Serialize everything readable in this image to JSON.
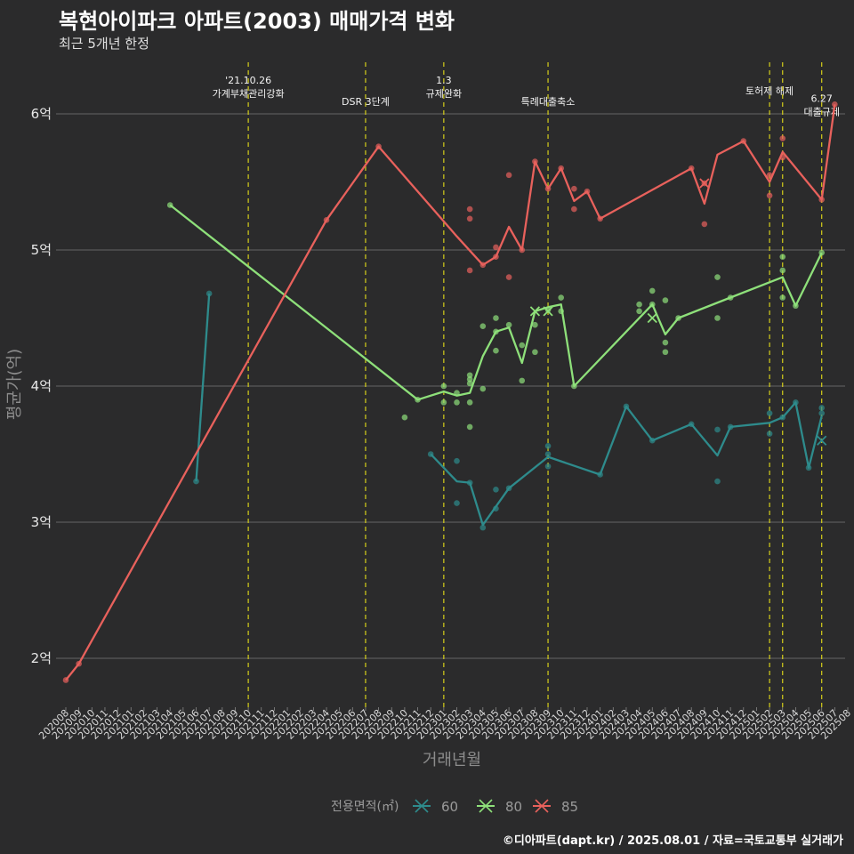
{
  "title": "복현아이파크 아파트(2003) 매매가격 변화",
  "subtitle": "최근 5개년 한정",
  "caption": "©디아파트(dapt.kr) / 2025.08.01 / 자료=국토교통부 실거래가",
  "chart_data": {
    "type": "line",
    "title": "복현아이파크 아파트(2003) 매매가격 변화",
    "subtitle": "최근 5개년 한정",
    "xlabel": "거래년월",
    "ylabel": "평균가(억)",
    "ylim": [
      1.65,
      6.5
    ],
    "yticks": [
      {
        "v": 2,
        "label": "2억"
      },
      {
        "v": 3,
        "label": "3억"
      },
      {
        "v": 4,
        "label": "4억"
      },
      {
        "v": 5,
        "label": "5억"
      },
      {
        "v": 6,
        "label": "6억"
      }
    ],
    "grid": true,
    "legend_position": "bottom",
    "legend_title": "전용면적(㎡)",
    "x_categories": [
      "202008",
      "202009",
      "202010",
      "202011",
      "202012",
      "202101",
      "202102",
      "202103",
      "202104",
      "202105",
      "202106",
      "202107",
      "202108",
      "202109",
      "202110",
      "202111",
      "202112",
      "202201",
      "202202",
      "202203",
      "202204",
      "202205",
      "202206",
      "202207",
      "202208",
      "202209",
      "202210",
      "202211",
      "202212",
      "202301",
      "202302",
      "202303",
      "202304",
      "202305",
      "202306",
      "202307",
      "202308",
      "202309",
      "202310",
      "202311",
      "202312",
      "202401",
      "202402",
      "202403",
      "202404",
      "202405",
      "202406",
      "202407",
      "202408",
      "202409",
      "202410",
      "202411",
      "202412",
      "202501",
      "202502",
      "202503",
      "202504",
      "202505",
      "202506",
      "202507",
      "202508"
    ],
    "series": [
      {
        "name": "60",
        "color": "#2e8b8c",
        "line": [
          [
            "202106",
            3.3
          ],
          [
            "202107",
            4.68
          ]
        ],
        "line2": [
          [
            "202212",
            3.5
          ],
          [
            "202302",
            3.3
          ],
          [
            "202303",
            3.29
          ],
          [
            "202304",
            2.98
          ],
          [
            "202306",
            3.25
          ],
          [
            "202309",
            3.48
          ],
          [
            "202401",
            3.35
          ],
          [
            "202403",
            3.85
          ],
          [
            "202405",
            3.6
          ],
          [
            "202408",
            3.72
          ],
          [
            "202410",
            3.49
          ],
          [
            "202411",
            3.7
          ],
          [
            "202502",
            3.73
          ],
          [
            "202503",
            3.77
          ],
          [
            "202504",
            3.88
          ],
          [
            "202505",
            3.4
          ],
          [
            "202506",
            3.78
          ]
        ],
        "points": [
          [
            "202106",
            3.3
          ],
          [
            "202107",
            4.68
          ],
          [
            "202212",
            3.5
          ],
          [
            "202302",
            3.45
          ],
          [
            "202302",
            3.14
          ],
          [
            "202303",
            3.29
          ],
          [
            "202304",
            2.96
          ],
          [
            "202305",
            3.24
          ],
          [
            "202305",
            3.1
          ],
          [
            "202306",
            3.25
          ],
          [
            "202309",
            3.5
          ],
          [
            "202309",
            3.56
          ],
          [
            "202309",
            3.41
          ],
          [
            "202401",
            3.35
          ],
          [
            "202403",
            3.85
          ],
          [
            "202405",
            3.6
          ],
          [
            "202408",
            3.72
          ],
          [
            "202410",
            3.68
          ],
          [
            "202410",
            3.3
          ],
          [
            "202411",
            3.7
          ],
          [
            "202502",
            3.8
          ],
          [
            "202502",
            3.65
          ],
          [
            "202503",
            3.77
          ],
          [
            "202504",
            3.88
          ],
          [
            "202505",
            3.4
          ],
          [
            "202506",
            3.84
          ],
          [
            "202506",
            3.8
          ]
        ],
        "cross": [
          [
            "202506",
            3.6
          ]
        ]
      },
      {
        "name": "80",
        "color": "#8ee07a",
        "line": [
          [
            "202104",
            5.33
          ],
          [
            "202211",
            3.9
          ],
          [
            "202301",
            3.96
          ],
          [
            "202302",
            3.93
          ],
          [
            "202303",
            3.95
          ],
          [
            "202304",
            4.22
          ],
          [
            "202305",
            4.4
          ],
          [
            "202306",
            4.43
          ],
          [
            "202307",
            4.17
          ],
          [
            "202308",
            4.55
          ],
          [
            "202309",
            4.58
          ],
          [
            "202310",
            4.6
          ],
          [
            "202311",
            4.0
          ],
          [
            "202405",
            4.6
          ],
          [
            "202406",
            4.38
          ],
          [
            "202407",
            4.5
          ],
          [
            "202411",
            4.65
          ],
          [
            "202503",
            4.8
          ],
          [
            "202504",
            4.59
          ],
          [
            "202506",
            4.98
          ]
        ],
        "points": [
          [
            "202104",
            5.33
          ],
          [
            "202210",
            3.77
          ],
          [
            "202211",
            3.9
          ],
          [
            "202301",
            4.0
          ],
          [
            "202301",
            3.88
          ],
          [
            "202302",
            3.95
          ],
          [
            "202302",
            3.88
          ],
          [
            "202303",
            4.05
          ],
          [
            "202303",
            4.08
          ],
          [
            "202303",
            4.02
          ],
          [
            "202303",
            3.88
          ],
          [
            "202303",
            3.7
          ],
          [
            "202304",
            4.44
          ],
          [
            "202304",
            3.98
          ],
          [
            "202305",
            4.5
          ],
          [
            "202305",
            4.4
          ],
          [
            "202305",
            4.26
          ],
          [
            "202306",
            4.45
          ],
          [
            "202307",
            4.3
          ],
          [
            "202307",
            4.04
          ],
          [
            "202308",
            4.45
          ],
          [
            "202308",
            4.25
          ],
          [
            "202309",
            4.56
          ],
          [
            "202310",
            4.65
          ],
          [
            "202310",
            4.55
          ],
          [
            "202311",
            4.0
          ],
          [
            "202404",
            4.6
          ],
          [
            "202404",
            4.55
          ],
          [
            "202405",
            4.7
          ],
          [
            "202405",
            4.6
          ],
          [
            "202406",
            4.63
          ],
          [
            "202406",
            4.32
          ],
          [
            "202406",
            4.25
          ],
          [
            "202407",
            4.5
          ],
          [
            "202410",
            4.8
          ],
          [
            "202410",
            4.5
          ],
          [
            "202411",
            4.65
          ],
          [
            "202503",
            4.95
          ],
          [
            "202503",
            4.85
          ],
          [
            "202503",
            4.65
          ],
          [
            "202504",
            4.59
          ],
          [
            "202506",
            4.98
          ]
        ],
        "cross": [
          [
            "202308",
            4.55
          ],
          [
            "202309",
            4.55
          ],
          [
            "202405",
            4.5
          ]
        ]
      },
      {
        "name": "85",
        "color": "#e8615c",
        "line": [
          [
            "202008",
            1.84
          ],
          [
            "202009",
            1.96
          ],
          [
            "202204",
            5.22
          ],
          [
            "202208",
            5.76
          ],
          [
            "202302",
            5.1
          ],
          [
            "202304",
            4.89
          ],
          [
            "202305",
            4.95
          ],
          [
            "202306",
            5.17
          ],
          [
            "202307",
            5.0
          ],
          [
            "202308",
            5.65
          ],
          [
            "202309",
            5.45
          ],
          [
            "202310",
            5.6
          ],
          [
            "202311",
            5.36
          ],
          [
            "202312",
            5.43
          ],
          [
            "202401",
            5.23
          ],
          [
            "202408",
            5.6
          ],
          [
            "202409",
            5.34
          ],
          [
            "202410",
            5.7
          ],
          [
            "202412",
            5.8
          ],
          [
            "202502",
            5.5
          ],
          [
            "202503",
            5.72
          ],
          [
            "202506",
            5.37
          ],
          [
            "202507",
            6.07
          ]
        ],
        "points": [
          [
            "202008",
            1.84
          ],
          [
            "202009",
            1.96
          ],
          [
            "202204",
            5.22
          ],
          [
            "202208",
            5.76
          ],
          [
            "202303",
            5.3
          ],
          [
            "202303",
            5.23
          ],
          [
            "202303",
            4.85
          ],
          [
            "202304",
            4.89
          ],
          [
            "202305",
            5.02
          ],
          [
            "202305",
            4.95
          ],
          [
            "202306",
            5.55
          ],
          [
            "202306",
            4.8
          ],
          [
            "202307",
            5.0
          ],
          [
            "202308",
            5.65
          ],
          [
            "202309",
            5.45
          ],
          [
            "202310",
            5.6
          ],
          [
            "202311",
            5.45
          ],
          [
            "202311",
            5.3
          ],
          [
            "202312",
            5.43
          ],
          [
            "202401",
            5.23
          ],
          [
            "202408",
            5.6
          ],
          [
            "202409",
            5.49
          ],
          [
            "202409",
            5.19
          ],
          [
            "202412",
            5.8
          ],
          [
            "202502",
            5.55
          ],
          [
            "202502",
            5.4
          ],
          [
            "202503",
            5.82
          ],
          [
            "202503",
            5.68
          ],
          [
            "202506",
            5.37
          ],
          [
            "202507",
            6.07
          ]
        ],
        "cross": [
          [
            "202409",
            5.49
          ]
        ]
      }
    ],
    "events": [
      {
        "x": "202110",
        "lines": [
          "'21.10.26",
          "가계부채관리강화"
        ],
        "row": 0
      },
      {
        "x": "202207",
        "lines": [
          "DSR 3단계"
        ],
        "row": 2
      },
      {
        "x": "202301",
        "lines": [
          "1.3",
          "규제완화"
        ],
        "row": 0
      },
      {
        "x": "202309",
        "lines": [
          "특례대출축소"
        ],
        "row": 2
      },
      {
        "x": "202502",
        "lines": [
          "토허제 해제"
        ],
        "row": 1
      },
      {
        "x": "202503",
        "lines": [],
        "row": 0
      },
      {
        "x": "202506",
        "lines": [
          "6.27",
          "대출규제"
        ],
        "row": 1.7
      }
    ]
  }
}
